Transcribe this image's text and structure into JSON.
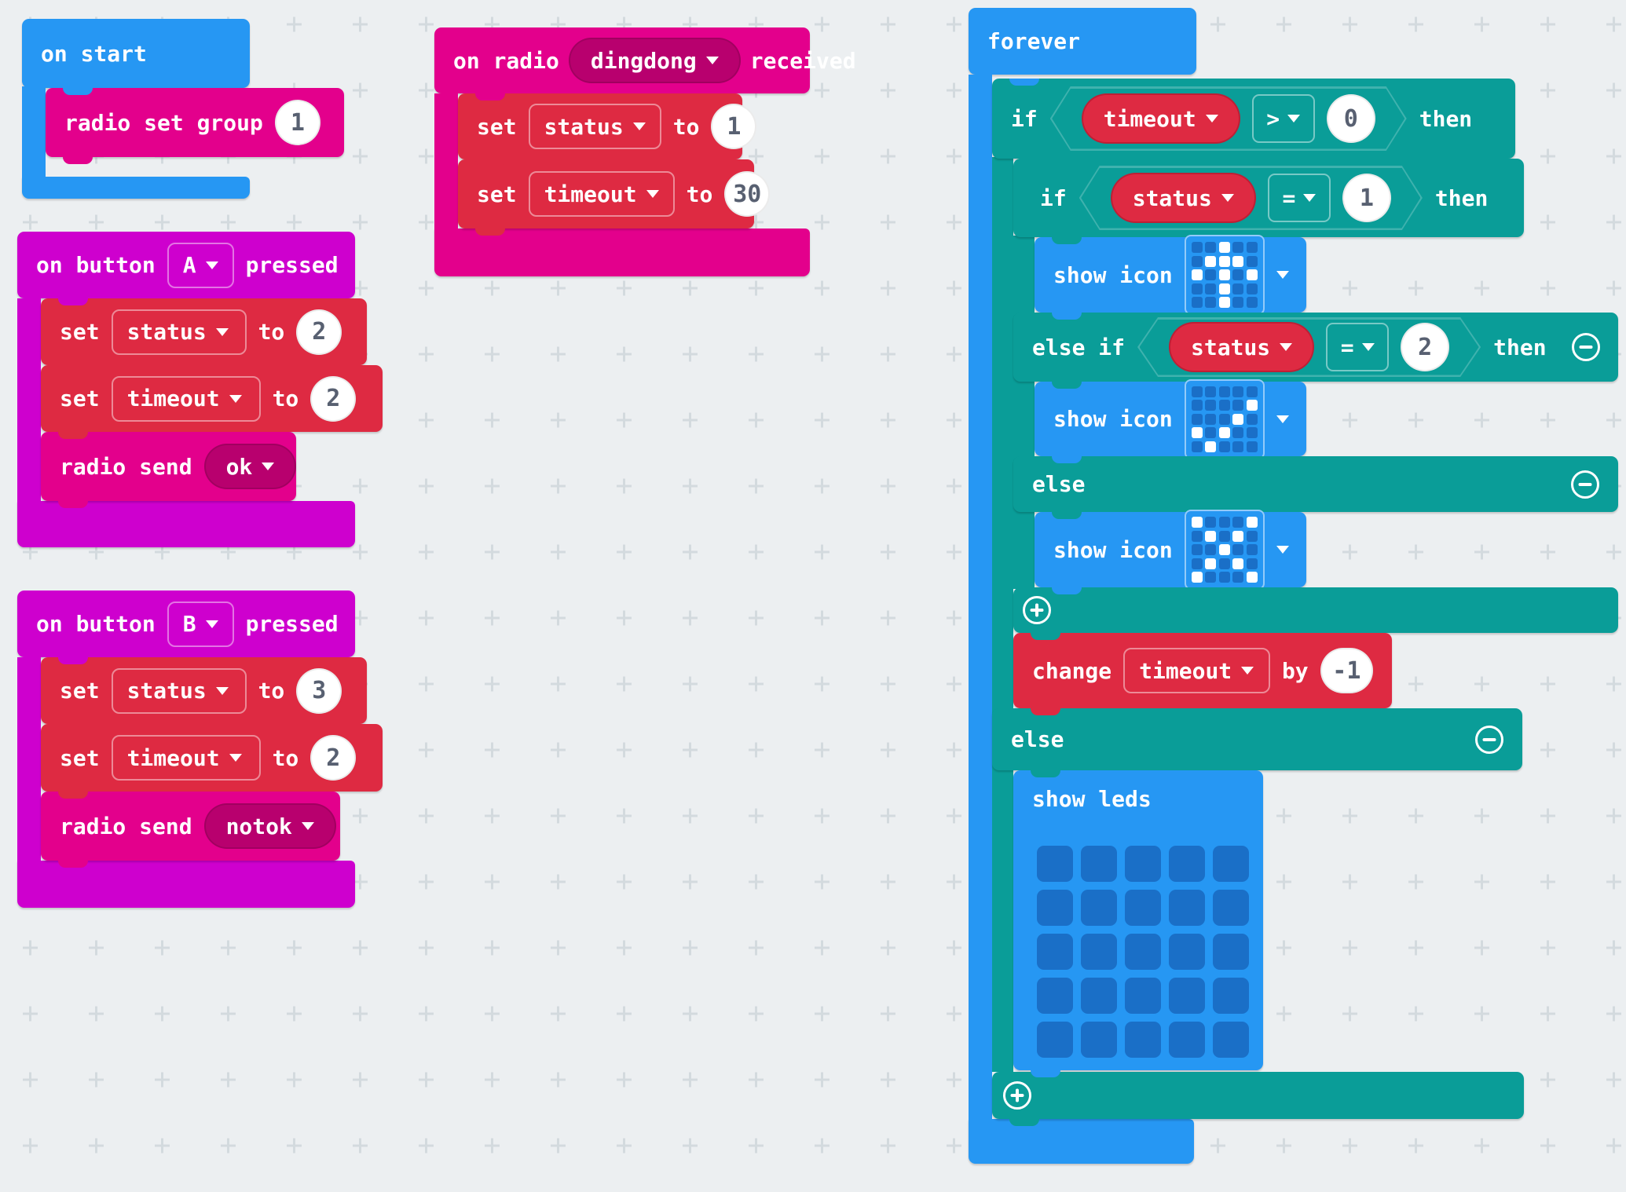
{
  "workspace": {
    "name": "MakeCode block editor canvas"
  },
  "colors": {
    "background": "#eceff1",
    "grid_cross": "#d3dade",
    "basic_blue": "#2697f3",
    "led_off_blue": "#1a6fc7",
    "logic_teal": "#0a9d98",
    "variables_red": "#de2a42",
    "input_magenta": "#ce00ce",
    "radio_pink": "#e3008c",
    "radio_pink_dark": "#b8006e",
    "number_text": "#586071"
  },
  "on_start": {
    "label": "on start",
    "radio_set_group": {
      "label": "radio set group",
      "value": "1"
    }
  },
  "on_button_a": {
    "prefix": "on button",
    "button": "A",
    "suffix": "pressed",
    "set_status": {
      "kw_set": "set",
      "var": "status",
      "kw_to": "to",
      "value": "2"
    },
    "set_timeout": {
      "kw_set": "set",
      "var": "timeout",
      "kw_to": "to",
      "value": "2"
    },
    "radio_send": {
      "label": "radio send",
      "value": "ok"
    }
  },
  "on_button_b": {
    "prefix": "on button",
    "button": "B",
    "suffix": "pressed",
    "set_status": {
      "kw_set": "set",
      "var": "status",
      "kw_to": "to",
      "value": "3"
    },
    "set_timeout": {
      "kw_set": "set",
      "var": "timeout",
      "kw_to": "to",
      "value": "2"
    },
    "radio_send": {
      "label": "radio send",
      "value": "notok"
    }
  },
  "on_radio": {
    "prefix": "on radio",
    "channel": "dingdong",
    "suffix": "received",
    "set_status": {
      "kw_set": "set",
      "var": "status",
      "kw_to": "to",
      "value": "1"
    },
    "set_timeout": {
      "kw_set": "set",
      "var": "timeout",
      "kw_to": "to",
      "value": "30"
    }
  },
  "forever": {
    "label": "forever",
    "if_timeout": {
      "kw": "if",
      "var": "timeout",
      "op": ">",
      "value": "0",
      "kw_then": "then"
    },
    "if_status1": {
      "kw": "if",
      "var": "status",
      "op": "=",
      "value": "1",
      "kw_then": "then"
    },
    "show_icon_1": {
      "label": "show icon",
      "icon_name": "arrow-north"
    },
    "else_if_status2": {
      "kw": "else if",
      "var": "status",
      "op": "=",
      "value": "2",
      "kw_then": "then"
    },
    "show_icon_2": {
      "label": "show icon",
      "icon_name": "yes-tick"
    },
    "else_inner": {
      "kw": "else"
    },
    "show_icon_3": {
      "label": "show icon",
      "icon_name": "no-cross"
    },
    "change_timeout": {
      "kw_change": "change",
      "var": "timeout",
      "kw_by": "by",
      "value": "-1"
    },
    "else_outer": {
      "kw": "else"
    },
    "show_leds": {
      "label": "show leds"
    }
  },
  "icons": {
    "arrow_north": [
      [
        0,
        0,
        1,
        0,
        0
      ],
      [
        0,
        1,
        1,
        1,
        0
      ],
      [
        1,
        0,
        1,
        0,
        1
      ],
      [
        0,
        0,
        1,
        0,
        0
      ],
      [
        0,
        0,
        1,
        0,
        0
      ]
    ],
    "yes_tick": [
      [
        0,
        0,
        0,
        0,
        0
      ],
      [
        0,
        0,
        0,
        0,
        1
      ],
      [
        0,
        0,
        0,
        1,
        0
      ],
      [
        1,
        0,
        1,
        0,
        0
      ],
      [
        0,
        1,
        0,
        0,
        0
      ]
    ],
    "no_cross": [
      [
        1,
        0,
        0,
        0,
        1
      ],
      [
        0,
        1,
        0,
        1,
        0
      ],
      [
        0,
        0,
        1,
        0,
        0
      ],
      [
        0,
        1,
        0,
        1,
        0
      ],
      [
        1,
        0,
        0,
        0,
        1
      ]
    ],
    "leds_off": [
      [
        0,
        0,
        0,
        0,
        0
      ],
      [
        0,
        0,
        0,
        0,
        0
      ],
      [
        0,
        0,
        0,
        0,
        0
      ],
      [
        0,
        0,
        0,
        0,
        0
      ],
      [
        0,
        0,
        0,
        0,
        0
      ]
    ]
  }
}
